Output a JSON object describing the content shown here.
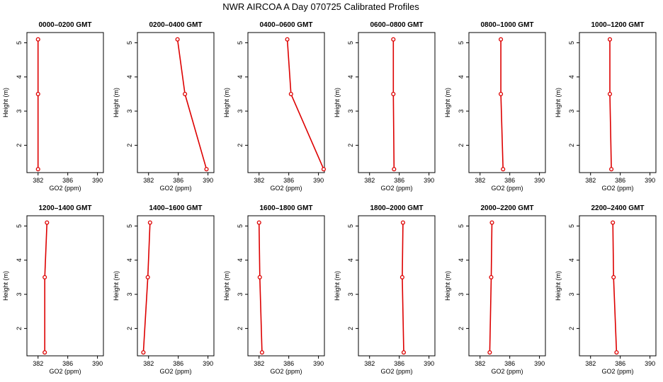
{
  "figure": {
    "title": "NWR AIRCOA A  Day 070725  Calibrated Profiles"
  },
  "chart_data": [
    {
      "type": "line",
      "title": "0000–0200 GMT",
      "xlabel": "GO2 (ppm)",
      "ylabel": "Height (m)",
      "xlim": [
        380.5,
        390.8
      ],
      "ylim": [
        1.2,
        5.3
      ],
      "xticks": [
        382,
        386,
        390
      ],
      "yticks": [
        2,
        3,
        4,
        5
      ],
      "series": [
        {
          "x": [
            382.0,
            382.0,
            382.0
          ],
          "y": [
            1.3,
            3.5,
            5.1
          ]
        }
      ]
    },
    {
      "type": "line",
      "title": "0200–0400 GMT",
      "xlabel": "GO2 (ppm)",
      "ylabel": "Height (m)",
      "xlim": [
        380.5,
        390.8
      ],
      "ylim": [
        1.2,
        5.3
      ],
      "xticks": [
        382,
        386,
        390
      ],
      "yticks": [
        2,
        3,
        4,
        5
      ],
      "series": [
        {
          "x": [
            389.8,
            386.9,
            385.9
          ],
          "y": [
            1.3,
            3.5,
            5.1
          ]
        }
      ]
    },
    {
      "type": "line",
      "title": "0400–0600 GMT",
      "xlabel": "GO2 (ppm)",
      "ylabel": "Height (m)",
      "xlim": [
        380.5,
        390.8
      ],
      "ylim": [
        1.2,
        5.3
      ],
      "xticks": [
        382,
        386,
        390
      ],
      "yticks": [
        2,
        3,
        4,
        5
      ],
      "series": [
        {
          "x": [
            390.7,
            386.3,
            385.8
          ],
          "y": [
            1.3,
            3.5,
            5.1
          ]
        }
      ]
    },
    {
      "type": "line",
      "title": "0600–0800 GMT",
      "xlabel": "GO2 (ppm)",
      "ylabel": "Height (m)",
      "xlim": [
        380.5,
        390.8
      ],
      "ylim": [
        1.2,
        5.3
      ],
      "xticks": [
        382,
        386,
        390
      ],
      "yticks": [
        2,
        3,
        4,
        5
      ],
      "series": [
        {
          "x": [
            385.3,
            385.2,
            385.2
          ],
          "y": [
            1.3,
            3.5,
            5.1
          ]
        }
      ]
    },
    {
      "type": "line",
      "title": "0800–1000 GMT",
      "xlabel": "GO2 (ppm)",
      "ylabel": "Height (m)",
      "xlim": [
        380.5,
        390.8
      ],
      "ylim": [
        1.2,
        5.3
      ],
      "xticks": [
        382,
        386,
        390
      ],
      "yticks": [
        2,
        3,
        4,
        5
      ],
      "series": [
        {
          "x": [
            385.1,
            384.8,
            384.8
          ],
          "y": [
            1.3,
            3.5,
            5.1
          ]
        }
      ]
    },
    {
      "type": "line",
      "title": "1000–1200 GMT",
      "xlabel": "GO2 (ppm)",
      "ylabel": "Height (m)",
      "xlim": [
        380.5,
        390.8
      ],
      "ylim": [
        1.2,
        5.3
      ],
      "xticks": [
        382,
        386,
        390
      ],
      "yticks": [
        2,
        3,
        4,
        5
      ],
      "series": [
        {
          "x": [
            384.8,
            384.6,
            384.6
          ],
          "y": [
            1.3,
            3.5,
            5.1
          ]
        }
      ]
    },
    {
      "type": "line",
      "title": "1200–1400 GMT",
      "xlabel": "GO2 (ppm)",
      "ylabel": "Height (m)",
      "xlim": [
        380.5,
        390.8
      ],
      "ylim": [
        1.2,
        5.3
      ],
      "xticks": [
        382,
        386,
        390
      ],
      "yticks": [
        2,
        3,
        4,
        5
      ],
      "series": [
        {
          "x": [
            382.9,
            382.9,
            383.2
          ],
          "y": [
            1.3,
            3.5,
            5.1
          ]
        }
      ]
    },
    {
      "type": "line",
      "title": "1400–1600 GMT",
      "xlabel": "GO2 (ppm)",
      "ylabel": "Height (m)",
      "xlim": [
        380.5,
        390.8
      ],
      "ylim": [
        1.2,
        5.3
      ],
      "xticks": [
        382,
        386,
        390
      ],
      "yticks": [
        2,
        3,
        4,
        5
      ],
      "series": [
        {
          "x": [
            381.3,
            381.9,
            382.2
          ],
          "y": [
            1.3,
            3.5,
            5.1
          ]
        }
      ]
    },
    {
      "type": "line",
      "title": "1600–1800 GMT",
      "xlabel": "GO2 (ppm)",
      "ylabel": "Height (m)",
      "xlim": [
        380.5,
        390.8
      ],
      "ylim": [
        1.2,
        5.3
      ],
      "xticks": [
        382,
        386,
        390
      ],
      "yticks": [
        2,
        3,
        4,
        5
      ],
      "series": [
        {
          "x": [
            382.4,
            382.1,
            382.0
          ],
          "y": [
            1.3,
            3.5,
            5.1
          ]
        }
      ]
    },
    {
      "type": "line",
      "title": "1800–2000 GMT",
      "xlabel": "GO2 (ppm)",
      "ylabel": "Height (m)",
      "xlim": [
        380.5,
        390.8
      ],
      "ylim": [
        1.2,
        5.3
      ],
      "xticks": [
        382,
        386,
        390
      ],
      "yticks": [
        2,
        3,
        4,
        5
      ],
      "series": [
        {
          "x": [
            386.6,
            386.4,
            386.5
          ],
          "y": [
            1.3,
            3.5,
            5.1
          ]
        }
      ]
    },
    {
      "type": "line",
      "title": "2000–2200 GMT",
      "xlabel": "GO2 (ppm)",
      "ylabel": "Height (m)",
      "xlim": [
        380.5,
        390.8
      ],
      "ylim": [
        1.2,
        5.3
      ],
      "xticks": [
        382,
        386,
        390
      ],
      "yticks": [
        2,
        3,
        4,
        5
      ],
      "series": [
        {
          "x": [
            383.3,
            383.5,
            383.6
          ],
          "y": [
            1.3,
            3.5,
            5.1
          ]
        }
      ]
    },
    {
      "type": "line",
      "title": "2200–2400 GMT",
      "xlabel": "GO2 (ppm)",
      "ylabel": "Height (m)",
      "xlim": [
        380.5,
        390.8
      ],
      "ylim": [
        1.2,
        5.3
      ],
      "xticks": [
        382,
        386,
        390
      ],
      "yticks": [
        2,
        3,
        4,
        5
      ],
      "series": [
        {
          "x": [
            385.5,
            385.1,
            385.0
          ],
          "y": [
            1.3,
            3.5,
            5.1
          ]
        }
      ]
    }
  ]
}
